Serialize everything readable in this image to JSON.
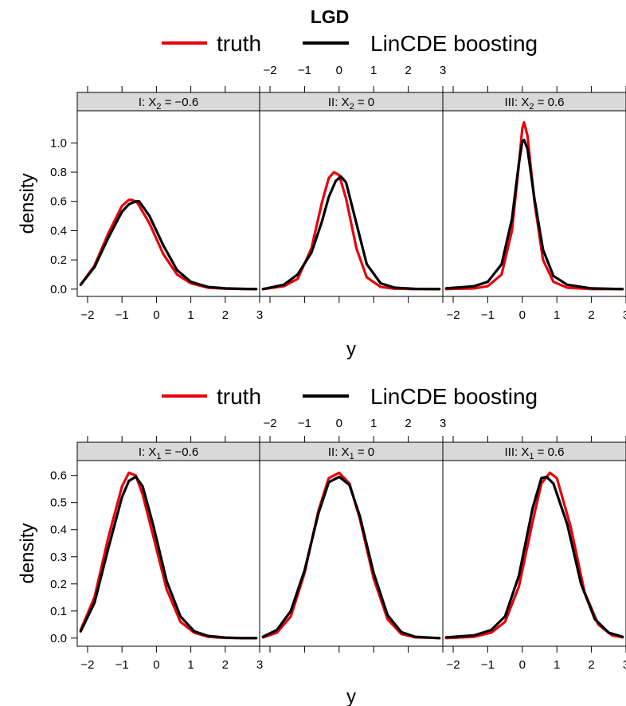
{
  "figure": {
    "title": "LGD"
  },
  "colors": {
    "truth": "#e8000b",
    "fit": "#000000",
    "strip": "#d9d9d9"
  },
  "chart_data": [
    {
      "type": "line",
      "title": "",
      "xlabel": "y",
      "ylabel": "density",
      "xlim": [
        -2.3,
        3.0
      ],
      "ylim": [
        -0.05,
        1.22
      ],
      "x_ticks": [
        -2,
        -1,
        0,
        1,
        2,
        3
      ],
      "x_tick_labels": [
        "−2",
        "−1",
        "0",
        "1",
        "2",
        "3"
      ],
      "y_ticks": [
        0.0,
        0.2,
        0.4,
        0.6,
        0.8,
        1.0
      ],
      "y_tick_labels": [
        "0.0",
        "0.2",
        "0.4",
        "0.6",
        "0.8",
        "1.0"
      ],
      "legend": {
        "placement": "top",
        "entries": [
          "truth",
          "LinCDE boosting"
        ]
      },
      "panels": [
        {
          "strip_prefix": "I: X",
          "strip_sub": "2",
          "strip_value": " = −0.6",
          "series": [
            {
              "name": "truth",
              "x": [
                -2.2,
                -1.8,
                -1.4,
                -1.0,
                -0.8,
                -0.7,
                -0.55,
                -0.2,
                0.2,
                0.6,
                1.0,
                1.5,
                2.0,
                2.5,
                2.9
              ],
              "y": [
                0.03,
                0.16,
                0.38,
                0.57,
                0.61,
                0.61,
                0.59,
                0.45,
                0.24,
                0.1,
                0.04,
                0.01,
                0.003,
                0.001,
                0.0
              ]
            },
            {
              "name": "LinCDE boosting",
              "x": [
                -2.2,
                -1.8,
                -1.4,
                -1.0,
                -0.8,
                -0.6,
                -0.5,
                -0.2,
                0.2,
                0.6,
                1.0,
                1.5,
                2.0,
                2.5,
                2.9
              ],
              "y": [
                0.03,
                0.15,
                0.35,
                0.53,
                0.58,
                0.6,
                0.6,
                0.5,
                0.3,
                0.13,
                0.05,
                0.015,
                0.005,
                0.002,
                0.0
              ]
            }
          ]
        },
        {
          "strip_prefix": "II: X",
          "strip_sub": "2",
          "strip_value": " = 0",
          "series": [
            {
              "name": "truth",
              "x": [
                -2.2,
                -1.6,
                -1.2,
                -0.8,
                -0.5,
                -0.3,
                -0.15,
                0.0,
                0.2,
                0.5,
                0.8,
                1.2,
                1.6,
                2.2,
                2.9
              ],
              "y": [
                0.0,
                0.02,
                0.07,
                0.28,
                0.59,
                0.76,
                0.8,
                0.78,
                0.62,
                0.28,
                0.08,
                0.015,
                0.003,
                0.0,
                0.0
              ]
            },
            {
              "name": "LinCDE boosting",
              "x": [
                -2.2,
                -1.6,
                -1.2,
                -0.8,
                -0.5,
                -0.3,
                -0.1,
                0.05,
                0.2,
                0.5,
                0.8,
                1.2,
                1.6,
                2.2,
                2.9
              ],
              "y": [
                0.0,
                0.03,
                0.1,
                0.25,
                0.46,
                0.63,
                0.74,
                0.77,
                0.73,
                0.45,
                0.17,
                0.04,
                0.01,
                0.002,
                0.0
              ]
            }
          ]
        },
        {
          "strip_prefix": "III: X",
          "strip_sub": "2",
          "strip_value": " = 0.6",
          "series": [
            {
              "name": "truth",
              "x": [
                -2.2,
                -1.4,
                -1.0,
                -0.6,
                -0.3,
                -0.1,
                0.0,
                0.05,
                0.15,
                0.35,
                0.6,
                0.9,
                1.3,
                2.0,
                2.9
              ],
              "y": [
                0.0,
                0.005,
                0.02,
                0.1,
                0.4,
                0.85,
                1.1,
                1.14,
                1.05,
                0.6,
                0.2,
                0.05,
                0.01,
                0.0,
                0.0
              ]
            },
            {
              "name": "LinCDE boosting",
              "x": [
                -2.2,
                -1.4,
                -1.0,
                -0.6,
                -0.3,
                -0.1,
                0.0,
                0.05,
                0.15,
                0.35,
                0.6,
                0.9,
                1.3,
                2.0,
                2.9
              ],
              "y": [
                0.005,
                0.02,
                0.05,
                0.17,
                0.48,
                0.86,
                1.01,
                1.02,
                0.96,
                0.62,
                0.27,
                0.09,
                0.03,
                0.005,
                0.0
              ]
            }
          ]
        }
      ]
    },
    {
      "type": "line",
      "title": "",
      "xlabel": "y",
      "ylabel": "density",
      "xlim": [
        -2.3,
        3.0
      ],
      "ylim": [
        -0.03,
        0.655
      ],
      "x_ticks": [
        -2,
        -1,
        0,
        1,
        2,
        3
      ],
      "x_tick_labels": [
        "−2",
        "−1",
        "0",
        "1",
        "2",
        "3"
      ],
      "y_ticks": [
        0.0,
        0.1,
        0.2,
        0.3,
        0.4,
        0.5,
        0.6
      ],
      "y_tick_labels": [
        "0.0",
        "0.1",
        "0.2",
        "0.3",
        "0.4",
        "0.5",
        "0.6"
      ],
      "legend": {
        "placement": "top",
        "entries": [
          "truth",
          "LinCDE boosting"
        ]
      },
      "panels": [
        {
          "strip_prefix": "I: X",
          "strip_sub": "1",
          "strip_value": " = −0.6",
          "series": [
            {
              "name": "truth",
              "x": [
                -2.2,
                -1.8,
                -1.4,
                -1.0,
                -0.8,
                -0.6,
                -0.4,
                -0.1,
                0.3,
                0.7,
                1.1,
                1.5,
                2.0,
                2.5,
                2.9
              ],
              "y": [
                0.03,
                0.15,
                0.37,
                0.56,
                0.61,
                0.6,
                0.53,
                0.38,
                0.18,
                0.06,
                0.02,
                0.005,
                0.001,
                0.0,
                0.0
              ]
            },
            {
              "name": "LinCDE boosting",
              "x": [
                -2.2,
                -1.8,
                -1.4,
                -1.0,
                -0.8,
                -0.6,
                -0.4,
                -0.1,
                0.3,
                0.7,
                1.1,
                1.5,
                2.0,
                2.5,
                2.9
              ],
              "y": [
                0.025,
                0.13,
                0.33,
                0.52,
                0.58,
                0.595,
                0.56,
                0.42,
                0.21,
                0.08,
                0.025,
                0.008,
                0.002,
                0.0,
                0.0
              ]
            }
          ]
        },
        {
          "strip_prefix": "II: X",
          "strip_sub": "1",
          "strip_value": " = 0",
          "series": [
            {
              "name": "truth",
              "x": [
                -2.2,
                -1.8,
                -1.4,
                -1.0,
                -0.6,
                -0.3,
                0.0,
                0.3,
                0.6,
                1.0,
                1.4,
                1.8,
                2.2,
                2.9
              ],
              "y": [
                0.003,
                0.02,
                0.08,
                0.24,
                0.47,
                0.59,
                0.61,
                0.57,
                0.44,
                0.22,
                0.07,
                0.015,
                0.003,
                0.0
              ]
            },
            {
              "name": "LinCDE boosting",
              "x": [
                -2.2,
                -1.8,
                -1.4,
                -1.0,
                -0.6,
                -0.3,
                0.0,
                0.3,
                0.6,
                1.0,
                1.4,
                1.8,
                2.2,
                2.9
              ],
              "y": [
                0.005,
                0.03,
                0.1,
                0.25,
                0.46,
                0.575,
                0.595,
                0.565,
                0.45,
                0.24,
                0.085,
                0.022,
                0.005,
                0.0
              ]
            }
          ]
        },
        {
          "strip_prefix": "III: X",
          "strip_sub": "1",
          "strip_value": " = 0.6",
          "series": [
            {
              "name": "truth",
              "x": [
                -2.2,
                -1.4,
                -0.9,
                -0.5,
                -0.1,
                0.3,
                0.55,
                0.8,
                1.0,
                1.4,
                1.8,
                2.2,
                2.6,
                2.9
              ],
              "y": [
                0.0,
                0.005,
                0.02,
                0.06,
                0.19,
                0.43,
                0.57,
                0.61,
                0.59,
                0.41,
                0.17,
                0.05,
                0.01,
                0.003
              ]
            },
            {
              "name": "LinCDE boosting",
              "x": [
                -2.2,
                -1.4,
                -0.9,
                -0.5,
                -0.1,
                0.3,
                0.55,
                0.7,
                0.9,
                1.3,
                1.7,
                2.1,
                2.5,
                2.9
              ],
              "y": [
                0.003,
                0.01,
                0.03,
                0.08,
                0.23,
                0.48,
                0.59,
                0.595,
                0.57,
                0.42,
                0.2,
                0.07,
                0.02,
                0.005
              ]
            }
          ]
        }
      ]
    }
  ]
}
